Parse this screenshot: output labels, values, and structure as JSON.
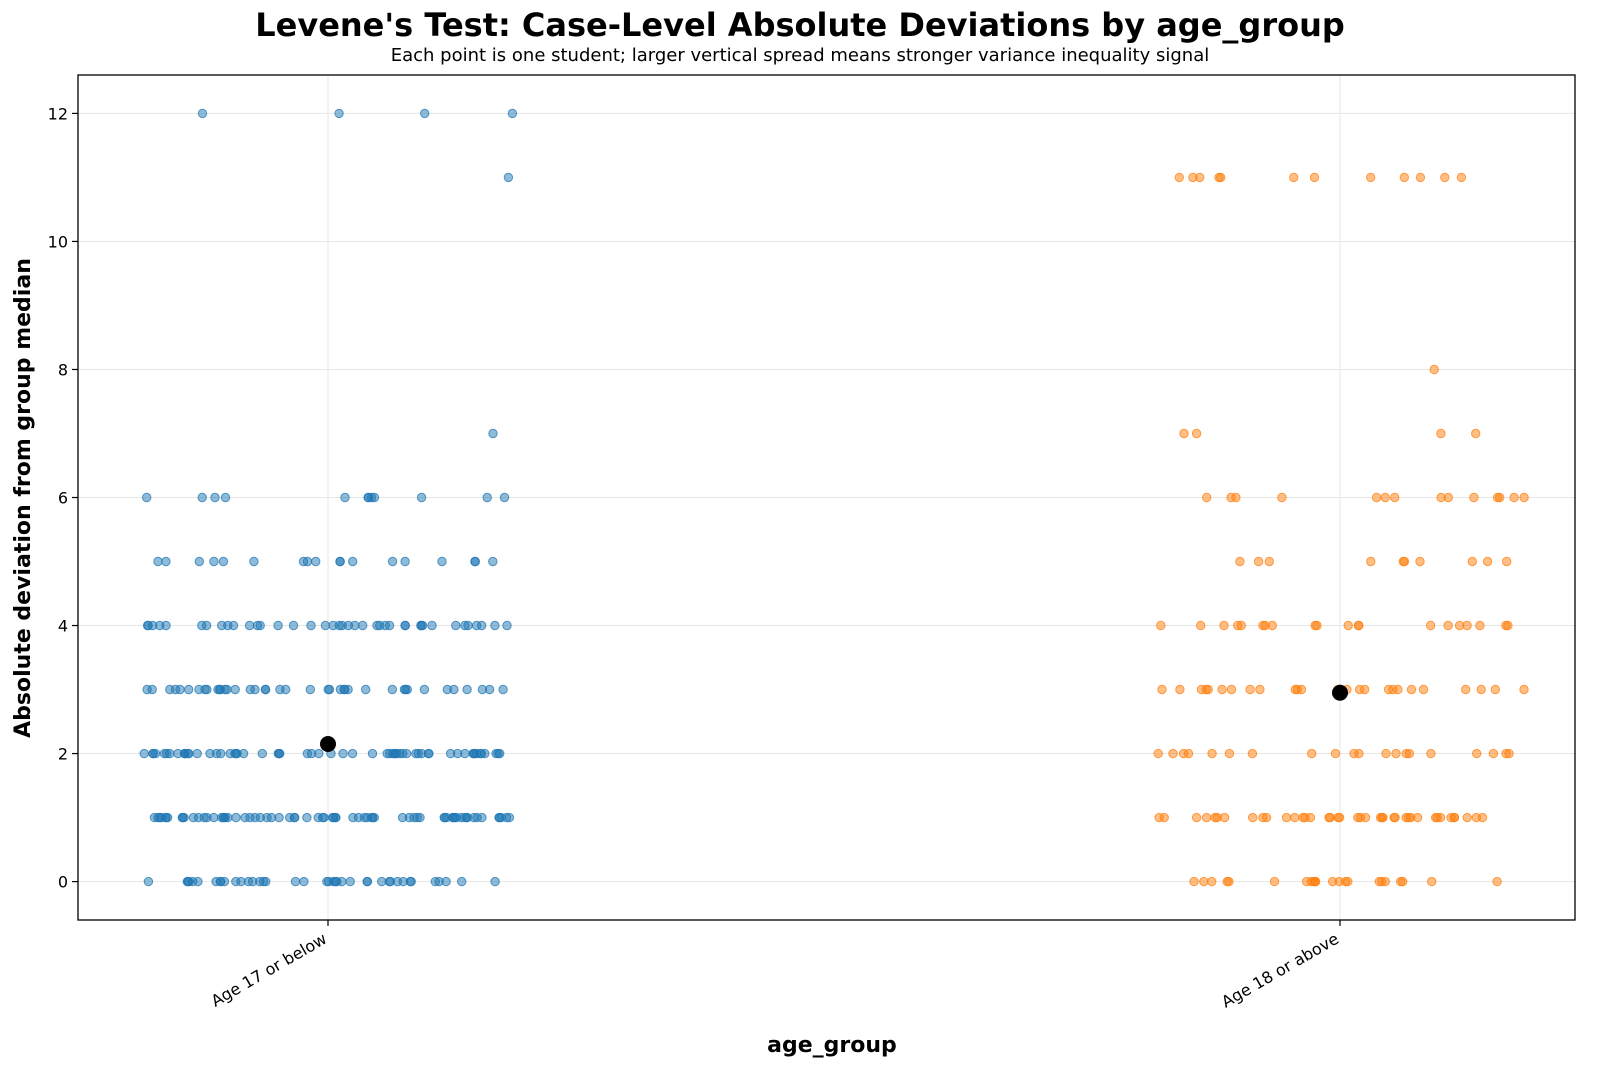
{
  "chart_data": {
    "type": "scatter",
    "title": "Levene's Test: Case-Level Absolute Deviations by age_group",
    "subtitle": "Each point is one student; larger vertical spread means stronger variance inequality signal",
    "xlabel": "age_group",
    "ylabel": "Absolute deviation from group median",
    "categories": [
      "Age 17 or below",
      "Age 18 or above"
    ],
    "ylim": [
      -0.6,
      12.6
    ],
    "yticks": [
      0,
      2,
      4,
      6,
      8,
      10,
      12
    ],
    "grid": true,
    "series": [
      {
        "category": "Age 17 or below",
        "color": "#1f77b4",
        "mean_deviation": 2.15,
        "values": [
          12,
          12,
          12,
          12,
          11,
          7,
          6,
          6,
          6,
          6,
          6,
          6,
          6,
          6,
          6,
          6,
          6,
          6,
          5,
          5,
          5,
          5,
          5,
          5,
          5,
          5,
          5,
          5,
          5,
          5,
          5,
          5,
          5,
          5,
          5,
          5,
          4,
          4,
          4,
          4,
          4,
          4,
          4,
          4,
          4,
          4,
          4,
          4,
          4,
          4,
          4,
          4,
          4,
          4,
          4,
          4,
          4,
          4,
          4,
          4,
          4,
          4,
          4,
          4,
          4,
          4,
          4,
          4,
          4,
          4,
          4,
          4,
          4,
          4,
          4,
          4,
          3,
          3,
          3,
          3,
          3,
          3,
          3,
          3,
          3,
          3,
          3,
          3,
          3,
          3,
          3,
          3,
          3,
          3,
          3,
          3,
          3,
          3,
          3,
          3,
          3,
          3,
          3,
          3,
          3,
          3,
          3,
          3,
          3,
          3,
          3,
          3,
          3,
          3,
          3,
          3,
          2,
          2,
          2,
          2,
          2,
          2,
          2,
          2,
          2,
          2,
          2,
          2,
          2,
          2,
          2,
          2,
          2,
          2,
          2,
          2,
          2,
          2,
          2,
          2,
          2,
          2,
          2,
          2,
          2,
          2,
          2,
          2,
          2,
          2,
          2,
          2,
          2,
          2,
          2,
          2,
          2,
          2,
          2,
          2,
          2,
          2,
          2,
          2,
          2,
          2,
          2,
          2,
          2,
          2,
          2,
          2,
          2,
          2,
          2,
          2,
          1,
          1,
          1,
          1,
          1,
          1,
          1,
          1,
          1,
          1,
          1,
          1,
          1,
          1,
          1,
          1,
          1,
          1,
          1,
          1,
          1,
          1,
          1,
          1,
          1,
          1,
          1,
          1,
          1,
          1,
          1,
          1,
          1,
          1,
          1,
          1,
          1,
          1,
          1,
          1,
          1,
          1,
          1,
          1,
          1,
          1,
          1,
          1,
          1,
          1,
          1,
          1,
          1,
          1,
          1,
          1,
          1,
          1,
          1,
          1,
          1,
          1,
          1,
          1,
          1,
          1,
          1,
          1,
          1,
          1,
          0,
          0,
          0,
          0,
          0,
          0,
          0,
          0,
          0,
          0,
          0,
          0,
          0,
          0,
          0,
          0,
          0,
          0,
          0,
          0,
          0,
          0,
          0,
          0,
          0,
          0,
          0,
          0,
          0,
          0,
          0,
          0,
          0,
          0,
          0,
          0,
          0,
          0,
          0,
          0
        ]
      },
      {
        "category": "Age 18 or above",
        "color": "#ff7f0e",
        "mean_deviation": 2.95,
        "values": [
          11,
          11,
          11,
          11,
          11,
          11,
          11,
          11,
          11,
          11,
          11,
          11,
          8,
          7,
          7,
          7,
          7,
          6,
          6,
          6,
          6,
          6,
          6,
          6,
          6,
          6,
          6,
          6,
          6,
          6,
          6,
          5,
          5,
          5,
          5,
          5,
          5,
          5,
          5,
          5,
          5,
          4,
          4,
          4,
          4,
          4,
          4,
          4,
          4,
          4,
          4,
          4,
          4,
          4,
          4,
          4,
          4,
          4,
          4,
          4,
          4,
          3,
          3,
          3,
          3,
          3,
          3,
          3,
          3,
          3,
          3,
          3,
          3,
          3,
          3,
          3,
          3,
          3,
          3,
          3,
          3,
          3,
          3,
          3,
          3,
          3,
          3,
          2,
          2,
          2,
          2,
          2,
          2,
          2,
          2,
          2,
          2,
          2,
          2,
          2,
          2,
          2,
          2,
          2,
          2,
          2,
          2,
          1,
          1,
          1,
          1,
          1,
          1,
          1,
          1,
          1,
          1,
          1,
          1,
          1,
          1,
          1,
          1,
          1,
          1,
          1,
          1,
          1,
          1,
          1,
          1,
          1,
          1,
          1,
          1,
          1,
          1,
          1,
          1,
          1,
          1,
          1,
          1,
          1,
          1,
          1,
          1,
          0,
          0,
          0,
          0,
          0,
          0,
          0,
          0,
          0,
          0,
          0,
          0,
          0,
          0,
          0,
          0,
          0,
          0,
          0,
          0,
          0,
          0
        ]
      }
    ]
  }
}
